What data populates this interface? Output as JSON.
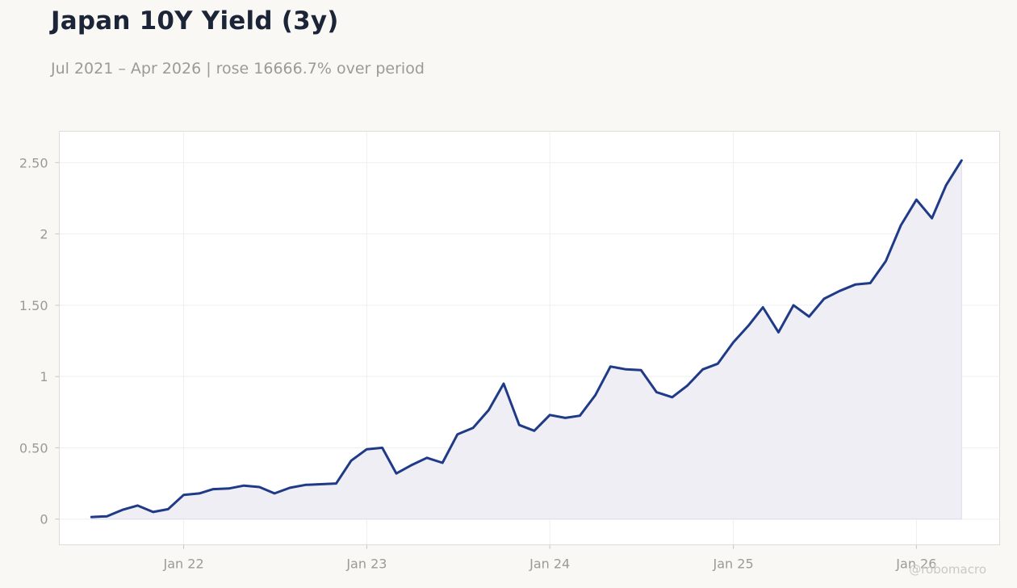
{
  "header": {
    "title": "Japan 10Y Yield (3y)",
    "subtitle": "Jul 2021 – Apr 2026 | rose 16666.7% over period"
  },
  "watermark": "@robomacro",
  "colors": {
    "line": "#1f3a87",
    "fill": "#eeeef4",
    "background": "#f9f8f5",
    "plot_background": "#ffffff",
    "grid": "#efefef"
  },
  "chart_data": {
    "type": "area",
    "title": "Japan 10Y Yield (3y)",
    "subtitle": "Jul 2021 – Apr 2026 | rose 16666.7% over period",
    "xlabel": "",
    "ylabel": "",
    "grid": true,
    "legend": "none",
    "xlim": [
      "2021-04-28",
      "2026-06-16"
    ],
    "ylim": [
      -0.18,
      2.72
    ],
    "x_ticks": [
      {
        "value": "2022-01-01",
        "label": "Jan 22"
      },
      {
        "value": "2023-01-01",
        "label": "Jan 23"
      },
      {
        "value": "2024-01-01",
        "label": "Jan 24"
      },
      {
        "value": "2025-01-01",
        "label": "Jan 25"
      },
      {
        "value": "2026-01-01",
        "label": "Jan 26"
      }
    ],
    "y_ticks": [
      {
        "value": 0,
        "label": "0"
      },
      {
        "value": 0.5,
        "label": "0.50"
      },
      {
        "value": 1,
        "label": "1"
      },
      {
        "value": 1.5,
        "label": "1.50"
      },
      {
        "value": 2,
        "label": "2"
      },
      {
        "value": 2.5,
        "label": "2.50"
      }
    ],
    "x": [
      "2021-07-01",
      "2021-08-01",
      "2021-09-01",
      "2021-10-01",
      "2021-11-01",
      "2021-12-01",
      "2022-01-01",
      "2022-02-01",
      "2022-03-01",
      "2022-04-01",
      "2022-05-01",
      "2022-06-01",
      "2022-07-01",
      "2022-08-01",
      "2022-09-01",
      "2022-10-01",
      "2022-11-01",
      "2022-12-01",
      "2023-01-01",
      "2023-02-01",
      "2023-03-01",
      "2023-04-01",
      "2023-05-01",
      "2023-06-01",
      "2023-07-01",
      "2023-08-01",
      "2023-09-01",
      "2023-10-01",
      "2023-11-01",
      "2023-12-01",
      "2024-01-01",
      "2024-02-01",
      "2024-03-01",
      "2024-04-01",
      "2024-05-01",
      "2024-06-01",
      "2024-07-01",
      "2024-08-01",
      "2024-09-01",
      "2024-10-01",
      "2024-11-01",
      "2024-12-01",
      "2025-01-01",
      "2025-02-01",
      "2025-03-01",
      "2025-04-01",
      "2025-05-01",
      "2025-06-01",
      "2025-07-01",
      "2025-08-01",
      "2025-09-01",
      "2025-10-01",
      "2025-11-01",
      "2025-12-01",
      "2026-01-01",
      "2026-02-01",
      "2026-03-01",
      "2026-04-01"
    ],
    "series": [
      {
        "values": [
          0.015,
          0.02,
          0.065,
          0.095,
          0.05,
          0.07,
          0.17,
          0.18,
          0.21,
          0.215,
          0.235,
          0.225,
          0.18,
          0.22,
          0.24,
          0.245,
          0.25,
          0.41,
          0.49,
          0.5,
          0.32,
          0.38,
          0.43,
          0.395,
          0.595,
          0.64,
          0.765,
          0.95,
          0.66,
          0.62,
          0.73,
          0.71,
          0.725,
          0.87,
          1.07,
          1.05,
          1.045,
          0.89,
          0.855,
          0.935,
          1.05,
          1.09,
          1.24,
          1.36,
          1.485,
          1.31,
          1.5,
          1.42,
          1.545,
          1.6,
          1.645,
          1.655,
          1.81,
          2.06,
          2.24,
          2.11,
          2.34,
          2.515
        ]
      }
    ]
  }
}
